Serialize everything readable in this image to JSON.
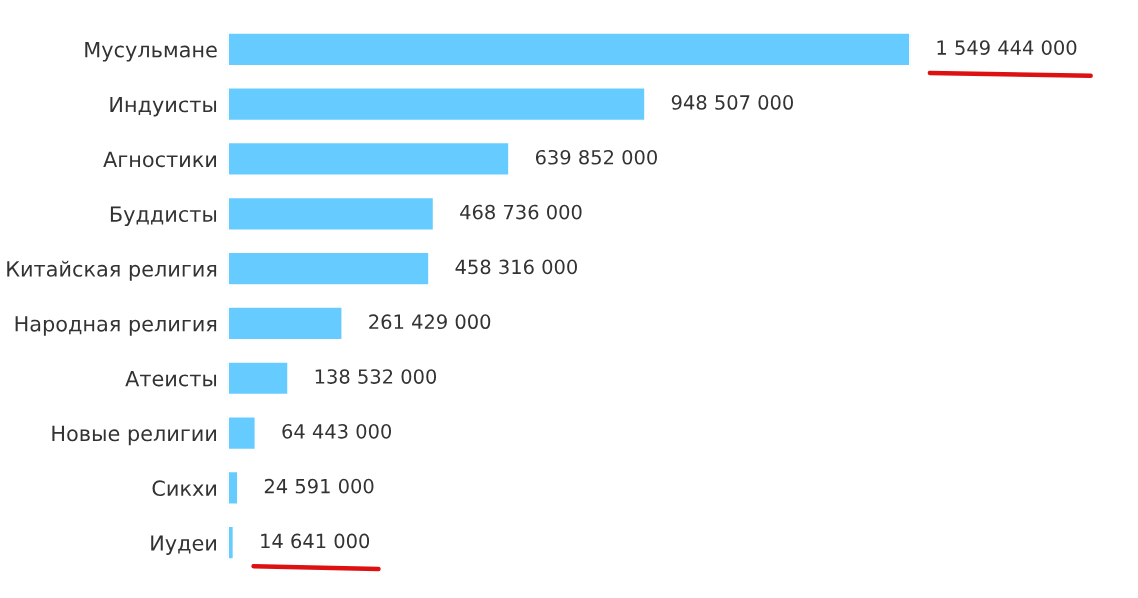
{
  "chart_data": {
    "type": "bar",
    "orientation": "horizontal",
    "categories": [
      "Мусульмане",
      "Индуисты",
      "Агностики",
      "Буддисты",
      "Китайская религия",
      "Народная религия",
      "Атеисты",
      "Новые религии",
      "Сикхи",
      "Иудеи"
    ],
    "values": [
      1549444000,
      948507000,
      639852000,
      468736000,
      458316000,
      261429000,
      138532000,
      64443000,
      24591000,
      14641000
    ],
    "value_labels": [
      "1 549 444 000",
      "948 507 000",
      "639 852 000",
      "468 736 000",
      "458 316 000",
      "261 429 000",
      "138 532 000",
      "64 443 000",
      "24 591 000",
      "14 641 000"
    ],
    "color": "#66ccff",
    "grid": false,
    "legend": false
  }
}
